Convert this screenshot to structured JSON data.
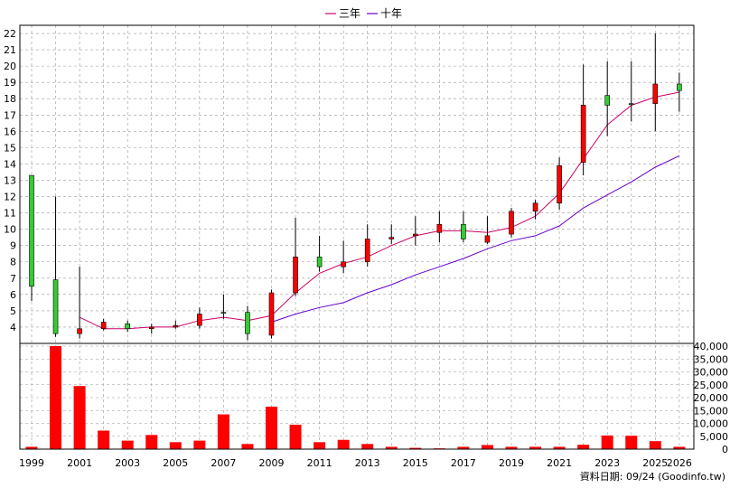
{
  "chart_data": {
    "type": "candlestick-with-volume",
    "legend": {
      "position": "top-center",
      "entries": [
        {
          "name": "三年",
          "color": "#cc0066"
        },
        {
          "name": "十年",
          "color": "#6600cc"
        }
      ]
    },
    "years": [
      "1999",
      "2000",
      "2001",
      "2002",
      "2003",
      "2004",
      "2005",
      "2006",
      "2007",
      "2008",
      "2009",
      "2010",
      "2011",
      "2012",
      "2013",
      "2014",
      "2015",
      "2016",
      "2017",
      "2018",
      "2019",
      "2020",
      "2021",
      "2022",
      "2023",
      "2024",
      "2025",
      "2026"
    ],
    "x_tick_labels": [
      "1999",
      "2001",
      "2003",
      "2005",
      "2007",
      "2009",
      "2011",
      "2013",
      "2015",
      "2017",
      "2019",
      "2021",
      "2023",
      "2025",
      "2026"
    ],
    "price_axis": {
      "min": 3,
      "max": 22.5,
      "ticks": [
        4,
        5,
        6,
        7,
        8,
        9,
        10,
        11,
        12,
        13,
        14,
        15,
        16,
        17,
        18,
        19,
        20,
        21,
        22
      ],
      "grid": true
    },
    "volume_axis": {
      "min": 0,
      "max": 40000,
      "ticks": [
        "0",
        "5,000",
        "10,000",
        "15,000",
        "20,000",
        "25,000",
        "30,000",
        "35,000",
        "40,000"
      ],
      "tick_values": [
        0,
        5000,
        10000,
        15000,
        20000,
        25000,
        30000,
        35000,
        40000
      ]
    },
    "candles": [
      {
        "year": "1999",
        "open": 6.5,
        "close": 13.3,
        "high": 13.3,
        "low": 5.6
      },
      {
        "year": "2000",
        "open": 3.6,
        "close": 6.9,
        "high": 12.0,
        "low": 3.4
      },
      {
        "year": "2001",
        "open": 3.9,
        "close": 3.6,
        "high": 7.7,
        "low": 3.3
      },
      {
        "year": "2002",
        "open": 4.3,
        "close": 3.9,
        "high": 4.5,
        "low": 3.8
      },
      {
        "year": "2003",
        "open": 3.9,
        "close": 4.2,
        "high": 4.4,
        "low": 3.7
      },
      {
        "year": "2004",
        "open": 4.0,
        "close": 3.9,
        "high": 4.2,
        "low": 3.6
      },
      {
        "year": "2005",
        "open": 4.1,
        "close": 4.0,
        "high": 4.4,
        "low": 3.9
      },
      {
        "year": "2006",
        "open": 4.8,
        "close": 4.1,
        "high": 5.2,
        "low": 3.9
      },
      {
        "year": "2007",
        "open": 4.9,
        "close": 4.9,
        "high": 6.0,
        "low": 4.5
      },
      {
        "year": "2008",
        "open": 3.6,
        "close": 4.9,
        "high": 5.3,
        "low": 3.2
      },
      {
        "year": "2009",
        "open": 6.1,
        "close": 3.5,
        "high": 6.3,
        "low": 3.3
      },
      {
        "year": "2010",
        "open": 8.3,
        "close": 6.1,
        "high": 10.7,
        "low": 5.9
      },
      {
        "year": "2011",
        "open": 7.7,
        "close": 8.3,
        "high": 9.6,
        "low": 7.4
      },
      {
        "year": "2012",
        "open": 8.0,
        "close": 7.7,
        "high": 9.3,
        "low": 7.3
      },
      {
        "year": "2013",
        "open": 9.4,
        "close": 8.0,
        "high": 10.3,
        "low": 7.7
      },
      {
        "year": "2014",
        "open": 9.5,
        "close": 9.4,
        "high": 10.3,
        "low": 9.1
      },
      {
        "year": "2015",
        "open": 9.7,
        "close": 9.6,
        "high": 10.8,
        "low": 9.0
      },
      {
        "year": "2016",
        "open": 10.3,
        "close": 9.8,
        "high": 11.1,
        "low": 9.2
      },
      {
        "year": "2017",
        "open": 9.4,
        "close": 10.3,
        "high": 11.1,
        "low": 9.2
      },
      {
        "year": "2018",
        "open": 9.6,
        "close": 9.2,
        "high": 10.8,
        "low": 9.1
      },
      {
        "year": "2019",
        "open": 11.1,
        "close": 9.7,
        "high": 11.3,
        "low": 9.5
      },
      {
        "year": "2020",
        "open": 11.6,
        "close": 11.1,
        "high": 11.8,
        "low": 10.6
      },
      {
        "year": "2021",
        "open": 13.9,
        "close": 11.6,
        "high": 14.4,
        "low": 11.2
      },
      {
        "year": "2022",
        "open": 17.6,
        "close": 14.1,
        "high": 20.1,
        "low": 13.3
      },
      {
        "year": "2023",
        "open": 17.6,
        "close": 18.2,
        "high": 20.3,
        "low": 15.7
      },
      {
        "year": "2024",
        "open": 17.7,
        "close": 17.7,
        "high": 20.3,
        "low": 16.6
      },
      {
        "year": "2025",
        "open": 18.9,
        "close": 17.7,
        "high": 22.0,
        "low": 16.0
      },
      {
        "year": "2026",
        "open": 18.5,
        "close": 18.9,
        "high": 19.6,
        "low": 17.2
      }
    ],
    "ma3": [
      {
        "year": "2001",
        "value": 4.6
      },
      {
        "year": "2002",
        "value": 3.9
      },
      {
        "year": "2003",
        "value": 3.9
      },
      {
        "year": "2004",
        "value": 4.0
      },
      {
        "year": "2005",
        "value": 4.0
      },
      {
        "year": "2006",
        "value": 4.4
      },
      {
        "year": "2007",
        "value": 4.6
      },
      {
        "year": "2008",
        "value": 4.4
      },
      {
        "year": "2009",
        "value": 4.7
      },
      {
        "year": "2010",
        "value": 6.1
      },
      {
        "year": "2011",
        "value": 7.3
      },
      {
        "year": "2012",
        "value": 7.9
      },
      {
        "year": "2013",
        "value": 8.3
      },
      {
        "year": "2014",
        "value": 9.0
      },
      {
        "year": "2015",
        "value": 9.6
      },
      {
        "year": "2016",
        "value": 9.9
      },
      {
        "year": "2017",
        "value": 9.9
      },
      {
        "year": "2018",
        "value": 9.8
      },
      {
        "year": "2019",
        "value": 10.1
      },
      {
        "year": "2020",
        "value": 10.8
      },
      {
        "year": "2021",
        "value": 12.2
      },
      {
        "year": "2022",
        "value": 14.3
      },
      {
        "year": "2023",
        "value": 16.4
      },
      {
        "year": "2024",
        "value": 17.6
      },
      {
        "year": "2025",
        "value": 18.1
      },
      {
        "year": "2026",
        "value": 18.4
      }
    ],
    "ma10": [
      {
        "year": "2009",
        "value": 4.3
      },
      {
        "year": "2010",
        "value": 4.8
      },
      {
        "year": "2011",
        "value": 5.2
      },
      {
        "year": "2012",
        "value": 5.5
      },
      {
        "year": "2013",
        "value": 6.1
      },
      {
        "year": "2014",
        "value": 6.6
      },
      {
        "year": "2015",
        "value": 7.2
      },
      {
        "year": "2016",
        "value": 7.7
      },
      {
        "year": "2017",
        "value": 8.2
      },
      {
        "year": "2018",
        "value": 8.8
      },
      {
        "year": "2019",
        "value": 9.3
      },
      {
        "year": "2020",
        "value": 9.6
      },
      {
        "year": "2021",
        "value": 10.2
      },
      {
        "year": "2022",
        "value": 11.3
      },
      {
        "year": "2023",
        "value": 12.1
      },
      {
        "year": "2024",
        "value": 12.9
      },
      {
        "year": "2025",
        "value": 13.8
      },
      {
        "year": "2026",
        "value": 14.5
      }
    ],
    "volumes": [
      {
        "year": "1999",
        "value": 900
      },
      {
        "year": "2000",
        "value": 41500
      },
      {
        "year": "2001",
        "value": 24500
      },
      {
        "year": "2002",
        "value": 7200
      },
      {
        "year": "2003",
        "value": 3300
      },
      {
        "year": "2004",
        "value": 5500
      },
      {
        "year": "2005",
        "value": 2700
      },
      {
        "year": "2006",
        "value": 3300
      },
      {
        "year": "2007",
        "value": 13500
      },
      {
        "year": "2008",
        "value": 2000
      },
      {
        "year": "2009",
        "value": 16500
      },
      {
        "year": "2010",
        "value": 9500
      },
      {
        "year": "2011",
        "value": 2700
      },
      {
        "year": "2012",
        "value": 3600
      },
      {
        "year": "2013",
        "value": 2000
      },
      {
        "year": "2014",
        "value": 900
      },
      {
        "year": "2015",
        "value": 500
      },
      {
        "year": "2016",
        "value": 300
      },
      {
        "year": "2017",
        "value": 900
      },
      {
        "year": "2018",
        "value": 1600
      },
      {
        "year": "2019",
        "value": 900
      },
      {
        "year": "2020",
        "value": 900
      },
      {
        "year": "2021",
        "value": 900
      },
      {
        "year": "2022",
        "value": 1700
      },
      {
        "year": "2023",
        "value": 5300
      },
      {
        "year": "2024",
        "value": 5200
      },
      {
        "year": "2025",
        "value": 3100
      },
      {
        "year": "2026",
        "value": 900
      }
    ],
    "colors": {
      "up": "#33cc33",
      "down": "#ff0000",
      "volume": "#ff0000",
      "grid": "#999999"
    }
  },
  "credit": "資料日期: 09/24 (Goodinfo.tw)"
}
